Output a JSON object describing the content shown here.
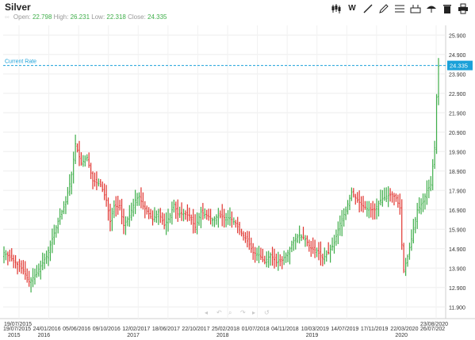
{
  "title": "Silver",
  "ohlc": {
    "open_label": "Open:",
    "open": "22.798",
    "high_label": "High:",
    "high": "26.231",
    "low_label": "Low:",
    "low": "22.318",
    "close_label": "Close:",
    "close": "24.335"
  },
  "toolbar": {
    "icons": [
      "candlestick-icon",
      "w-chart-type-icon",
      "draw-line-icon",
      "pencil-icon",
      "indicators-icon",
      "compare-icon",
      "umbrella-icon",
      "delete-icon",
      "print-icon"
    ],
    "w_label": "W"
  },
  "current_rate": {
    "label": "Current Rate",
    "value": "24.335",
    "level": 24.335,
    "color": "#1ba1d9"
  },
  "chart_data": {
    "type": "ohlc",
    "title": "",
    "xlabel": "",
    "ylabel": "",
    "ylim": [
      11.3,
      26.4
    ],
    "y_ticks": [
      11.9,
      12.9,
      13.9,
      14.9,
      15.9,
      16.9,
      17.9,
      18.9,
      19.9,
      20.9,
      21.9,
      22.9,
      23.9,
      24.9,
      25.9
    ],
    "y_tick_labels": [
      "11.900",
      "12.900",
      "13.900",
      "14.900",
      "15.900",
      "16.900",
      "17.900",
      "18.900",
      "19.900",
      "20.900",
      "21.900",
      "22.900",
      "23.900",
      "24.900",
      "25.900"
    ],
    "x_tick_labels": [
      {
        "date": "19/07/2015",
        "year": "2015"
      },
      {
        "date": "24/01/2016",
        "year": "2016"
      },
      {
        "date": "05/06/2016",
        "year": ""
      },
      {
        "date": "09/10/2016",
        "year": ""
      },
      {
        "date": "12/02/2017",
        "year": "2017"
      },
      {
        "date": "18/06/2017",
        "year": ""
      },
      {
        "date": "22/10/2017",
        "year": ""
      },
      {
        "date": "25/02/2018",
        "year": "2018"
      },
      {
        "date": "01/07/2018",
        "year": ""
      },
      {
        "date": "04/11/2018",
        "year": ""
      },
      {
        "date": "10/03/2019",
        "year": "2019"
      },
      {
        "date": "14/07/2019",
        "year": ""
      },
      {
        "date": "17/11/2019",
        "year": ""
      },
      {
        "date": "22/03/2020",
        "year": "2020"
      },
      {
        "date": "26/07/202",
        "year": ""
      }
    ],
    "range_start": "19/07/2015",
    "range_end": "23/08/2020",
    "frequency": "weekly",
    "up_color": "#3fae4a",
    "down_color": "#e0342f",
    "grid": true,
    "close_path": [
      [
        0,
        14.7
      ],
      [
        5,
        14.3
      ],
      [
        10,
        13.8
      ],
      [
        13,
        13.2
      ],
      [
        16,
        13.5
      ],
      [
        22,
        14.5
      ],
      [
        28,
        16.3
      ],
      [
        32,
        17.3
      ],
      [
        35,
        18.7
      ],
      [
        37,
        20.3
      ],
      [
        40,
        19.3
      ],
      [
        43,
        19.6
      ],
      [
        46,
        18.4
      ],
      [
        50,
        18.2
      ],
      [
        53,
        17.4
      ],
      [
        55,
        16.3
      ],
      [
        57,
        17.1
      ],
      [
        60,
        17.0
      ],
      [
        62,
        16.1
      ],
      [
        65,
        16.6
      ],
      [
        68,
        17.4
      ],
      [
        70,
        17.6
      ],
      [
        72,
        17.1
      ],
      [
        75,
        16.7
      ],
      [
        77,
        16.4
      ],
      [
        80,
        16.8
      ],
      [
        83,
        16.1
      ],
      [
        86,
        16.6
      ],
      [
        88,
        17.2
      ],
      [
        90,
        16.7
      ],
      [
        93,
        16.7
      ],
      [
        96,
        16.6
      ],
      [
        99,
        16.0
      ],
      [
        102,
        16.8
      ],
      [
        105,
        16.6
      ],
      [
        108,
        16.4
      ],
      [
        111,
        16.6
      ],
      [
        114,
        16.5
      ],
      [
        117,
        16.5
      ],
      [
        120,
        16.2
      ],
      [
        123,
        15.7
      ],
      [
        126,
        15.3
      ],
      [
        129,
        14.7
      ],
      [
        132,
        14.6
      ],
      [
        135,
        14.2
      ],
      [
        138,
        14.6
      ],
      [
        141,
        14.2
      ],
      [
        144,
        14.3
      ],
      [
        147,
        14.7
      ],
      [
        150,
        15.3
      ],
      [
        153,
        15.6
      ],
      [
        156,
        15.4
      ],
      [
        159,
        14.9
      ],
      [
        162,
        14.8
      ],
      [
        165,
        14.4
      ],
      [
        168,
        14.7
      ],
      [
        171,
        15.2
      ],
      [
        174,
        16.2
      ],
      [
        177,
        16.9
      ],
      [
        180,
        17.8
      ],
      [
        183,
        17.4
      ],
      [
        186,
        17.1
      ],
      [
        189,
        16.9
      ],
      [
        192,
        16.9
      ],
      [
        195,
        17.4
      ],
      [
        198,
        17.6
      ],
      [
        201,
        17.7
      ],
      [
        203,
        17.5
      ],
      [
        205,
        17.0
      ],
      [
        206,
        15.1
      ],
      [
        207,
        13.8
      ],
      [
        209,
        14.5
      ],
      [
        211,
        15.4
      ],
      [
        214,
        16.9
      ],
      [
        217,
        17.3
      ],
      [
        219,
        17.9
      ],
      [
        221,
        18.2
      ],
      [
        223,
        20.1
      ],
      [
        224,
        22.7
      ],
      [
        225,
        24.3
      ]
    ]
  },
  "nav_icons": [
    "first-icon",
    "prev-icon",
    "zoom-icon",
    "next-icon",
    "last-icon",
    "reset-icon"
  ]
}
